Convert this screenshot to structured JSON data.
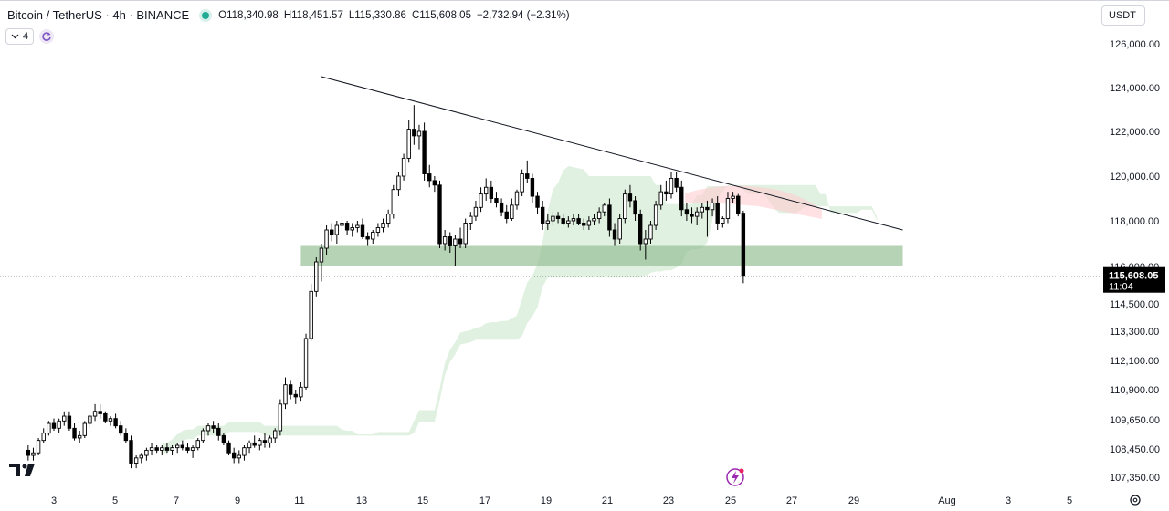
{
  "header": {
    "symbol": "Bitcoin / TetherUS · 4h · BINANCE",
    "open": "O118,340.98",
    "high": "H118,451.57",
    "low": "L115,330.86",
    "close": "C115,608.05",
    "change": "−2,732.94 (−2.31%)",
    "currency": "USDT",
    "indicator_count": "4"
  },
  "colors": {
    "status": "#22ab94",
    "candle_up": "#ffffff",
    "candle_down": "#000000",
    "support_zone": "#8fbc8f",
    "cloud_bull": "#c8e6c9",
    "cloud_bear": "#ffcdd2",
    "price_tag": "#000000"
  },
  "price_tag": {
    "price": "115,608.05",
    "countdown": "11:04"
  },
  "chart_data": {
    "type": "candlestick",
    "y_tick_labels": [
      "126,000.00",
      "124,000.00",
      "122,000.00",
      "120,000.00",
      "118,000.00",
      "116,000.00",
      "114,500.00",
      "113,300.00",
      "112,100.00",
      "110,900.00",
      "109,650.00",
      "108,450.00",
      "107,350.00"
    ],
    "x_tick_labels": [
      "3",
      "5",
      "7",
      "9",
      "11",
      "13",
      "15",
      "17",
      "19",
      "21",
      "23",
      "25",
      "27",
      "29",
      "Aug",
      "3",
      "5"
    ],
    "trendline": {
      "from": [
        "2025-07-11 16:00",
        124500
      ],
      "to": [
        "2025-07-30 12:00",
        117600
      ]
    },
    "support_zone": {
      "from": "2025-07-11 00:00",
      "to": "2025-07-30 12:00",
      "low": 116000,
      "high": 116900
    },
    "last_price": 115608.05,
    "candles": [
      [
        "2025-07-02 04:00",
        108400,
        108600,
        108000,
        108200
      ],
      [
        "2025-07-02 08:00",
        108200,
        108500,
        108000,
        108300
      ],
      [
        "2025-07-02 12:00",
        108300,
        108900,
        108200,
        108800
      ],
      [
        "2025-07-02 16:00",
        108800,
        109300,
        108700,
        109100
      ],
      [
        "2025-07-02 20:00",
        109100,
        109600,
        109000,
        109500
      ],
      [
        "2025-07-03 00:00",
        109500,
        109700,
        109200,
        109300
      ],
      [
        "2025-07-03 04:00",
        109300,
        109700,
        109100,
        109600
      ],
      [
        "2025-07-03 08:00",
        109600,
        110000,
        109400,
        109800
      ],
      [
        "2025-07-03 12:00",
        109800,
        110000,
        109200,
        109300
      ],
      [
        "2025-07-03 16:00",
        109300,
        109500,
        108800,
        108900
      ],
      [
        "2025-07-03 20:00",
        108900,
        109200,
        108700,
        109000
      ],
      [
        "2025-07-04 00:00",
        109000,
        109600,
        108900,
        109500
      ],
      [
        "2025-07-04 04:00",
        109500,
        109900,
        109300,
        109800
      ],
      [
        "2025-07-04 08:00",
        109800,
        110300,
        109600,
        110000
      ],
      [
        "2025-07-04 12:00",
        110000,
        110300,
        109700,
        109900
      ],
      [
        "2025-07-04 16:00",
        109900,
        110000,
        109500,
        109600
      ],
      [
        "2025-07-04 20:00",
        109600,
        109800,
        109400,
        109700
      ],
      [
        "2025-07-05 00:00",
        109700,
        109900,
        109300,
        109400
      ],
      [
        "2025-07-05 04:00",
        109400,
        109600,
        109000,
        109100
      ],
      [
        "2025-07-05 08:00",
        109100,
        109300,
        108700,
        108800
      ],
      [
        "2025-07-05 12:00",
        108800,
        109000,
        107700,
        107900
      ],
      [
        "2025-07-05 16:00",
        107900,
        108200,
        107700,
        108100
      ],
      [
        "2025-07-05 20:00",
        108100,
        108300,
        107900,
        108200
      ],
      [
        "2025-07-06 00:00",
        108200,
        108500,
        108000,
        108400
      ],
      [
        "2025-07-06 04:00",
        108400,
        108700,
        108200,
        108500
      ],
      [
        "2025-07-06 08:00",
        108500,
        108600,
        108300,
        108400
      ],
      [
        "2025-07-06 12:00",
        108400,
        108600,
        108200,
        108500
      ],
      [
        "2025-07-06 16:00",
        108500,
        108700,
        108300,
        108400
      ],
      [
        "2025-07-06 20:00",
        108400,
        108600,
        108200,
        108500
      ],
      [
        "2025-07-07 00:00",
        108500,
        108700,
        108300,
        108600
      ],
      [
        "2025-07-07 04:00",
        108600,
        108800,
        108400,
        108500
      ],
      [
        "2025-07-07 08:00",
        108500,
        108700,
        108300,
        108400
      ],
      [
        "2025-07-07 12:00",
        108400,
        108600,
        108100,
        108500
      ],
      [
        "2025-07-07 16:00",
        108500,
        108900,
        108400,
        108800
      ],
      [
        "2025-07-07 20:00",
        108800,
        109300,
        108700,
        109200
      ],
      [
        "2025-07-08 00:00",
        109200,
        109500,
        109000,
        109400
      ],
      [
        "2025-07-08 04:00",
        109400,
        109600,
        109100,
        109300
      ],
      [
        "2025-07-08 08:00",
        109300,
        109500,
        108800,
        109000
      ],
      [
        "2025-07-08 12:00",
        109000,
        109100,
        108600,
        108700
      ],
      [
        "2025-07-08 16:00",
        108700,
        108800,
        108200,
        108300
      ],
      [
        "2025-07-08 20:00",
        108300,
        108500,
        107900,
        108100
      ],
      [
        "2025-07-09 00:00",
        108100,
        108400,
        107900,
        108200
      ],
      [
        "2025-07-09 04:00",
        108200,
        108600,
        108000,
        108500
      ],
      [
        "2025-07-09 08:00",
        108500,
        108800,
        108300,
        108700
      ],
      [
        "2025-07-09 12:00",
        108700,
        109000,
        108500,
        108600
      ],
      [
        "2025-07-09 16:00",
        108600,
        108900,
        108400,
        108800
      ],
      [
        "2025-07-09 20:00",
        108800,
        109100,
        108500,
        108700
      ],
      [
        "2025-07-10 00:00",
        108700,
        109000,
        108500,
        108900
      ],
      [
        "2025-07-10 04:00",
        108900,
        109300,
        108700,
        109200
      ],
      [
        "2025-07-10 08:00",
        109200,
        110500,
        109000,
        110300
      ],
      [
        "2025-07-10 12:00",
        110300,
        111400,
        110100,
        111100
      ],
      [
        "2025-07-10 16:00",
        111100,
        111300,
        110500,
        110700
      ],
      [
        "2025-07-10 20:00",
        110700,
        110900,
        110300,
        110600
      ],
      [
        "2025-07-11 00:00",
        110600,
        111200,
        110400,
        111000
      ],
      [
        "2025-07-11 04:00",
        111000,
        113200,
        110900,
        113000
      ],
      [
        "2025-07-11 08:00",
        113000,
        115300,
        112900,
        115000
      ],
      [
        "2025-07-11 12:00",
        115000,
        116400,
        114800,
        116200
      ],
      [
        "2025-07-11 16:00",
        116200,
        117000,
        115400,
        116800
      ],
      [
        "2025-07-11 20:00",
        116800,
        117800,
        116500,
        117600
      ],
      [
        "2025-07-12 00:00",
        117600,
        117900,
        117100,
        117400
      ],
      [
        "2025-07-12 04:00",
        117400,
        118000,
        117000,
        117800
      ],
      [
        "2025-07-12 08:00",
        117800,
        118200,
        117600,
        117900
      ],
      [
        "2025-07-12 12:00",
        117900,
        118000,
        117400,
        117600
      ],
      [
        "2025-07-12 16:00",
        117600,
        117900,
        117300,
        117700
      ],
      [
        "2025-07-12 20:00",
        117700,
        118000,
        117500,
        117800
      ],
      [
        "2025-07-13 00:00",
        117800,
        118100,
        117200,
        117300
      ],
      [
        "2025-07-13 04:00",
        117300,
        117500,
        116900,
        117200
      ],
      [
        "2025-07-13 08:00",
        117200,
        117600,
        117000,
        117500
      ],
      [
        "2025-07-13 12:00",
        117500,
        117900,
        117300,
        117700
      ],
      [
        "2025-07-13 16:00",
        117700,
        118100,
        117500,
        117900
      ],
      [
        "2025-07-13 20:00",
        117900,
        118500,
        117700,
        118300
      ],
      [
        "2025-07-14 00:00",
        118300,
        119600,
        118100,
        119400
      ],
      [
        "2025-07-14 04:00",
        119400,
        120200,
        119100,
        120000
      ],
      [
        "2025-07-14 08:00",
        120000,
        121000,
        119800,
        120800
      ],
      [
        "2025-07-14 12:00",
        120800,
        122500,
        120600,
        122100
      ],
      [
        "2025-07-14 16:00",
        122100,
        123200,
        121400,
        121800
      ],
      [
        "2025-07-14 20:00",
        121800,
        122300,
        121200,
        122000
      ],
      [
        "2025-07-15 00:00",
        122000,
        122400,
        119800,
        120100
      ],
      [
        "2025-07-15 04:00",
        120100,
        120500,
        119500,
        119800
      ],
      [
        "2025-07-15 08:00",
        119800,
        120000,
        119300,
        119600
      ],
      [
        "2025-07-15 12:00",
        119600,
        119800,
        116800,
        117000
      ],
      [
        "2025-07-15 16:00",
        117000,
        117600,
        116700,
        117300
      ],
      [
        "2025-07-15 20:00",
        117300,
        117500,
        116600,
        116900
      ],
      [
        "2025-07-16 00:00",
        116900,
        117400,
        116000,
        117200
      ],
      [
        "2025-07-16 04:00",
        117200,
        117700,
        116800,
        117000
      ],
      [
        "2025-07-16 08:00",
        117000,
        118100,
        116800,
        117900
      ],
      [
        "2025-07-16 12:00",
        117900,
        118400,
        117600,
        118200
      ],
      [
        "2025-07-16 16:00",
        118200,
        118900,
        118000,
        118600
      ],
      [
        "2025-07-16 20:00",
        118600,
        119500,
        118400,
        119200
      ],
      [
        "2025-07-17 00:00",
        119200,
        119900,
        118900,
        119500
      ],
      [
        "2025-07-17 04:00",
        119500,
        119800,
        118800,
        119000
      ],
      [
        "2025-07-17 08:00",
        119000,
        119300,
        118600,
        118800
      ],
      [
        "2025-07-17 12:00",
        118800,
        119000,
        118200,
        118400
      ],
      [
        "2025-07-17 16:00",
        118400,
        118700,
        117900,
        118100
      ],
      [
        "2025-07-17 20:00",
        118100,
        119000,
        118000,
        118700
      ],
      [
        "2025-07-18 00:00",
        118700,
        119400,
        118500,
        119300
      ],
      [
        "2025-07-18 04:00",
        119300,
        120300,
        119100,
        120100
      ],
      [
        "2025-07-18 08:00",
        120100,
        120700,
        119700,
        119900
      ],
      [
        "2025-07-18 12:00",
        119900,
        120100,
        118800,
        119100
      ],
      [
        "2025-07-18 16:00",
        119100,
        119300,
        118300,
        118600
      ],
      [
        "2025-07-18 20:00",
        118600,
        118900,
        117600,
        117900
      ],
      [
        "2025-07-19 00:00",
        117900,
        118300,
        117600,
        118000
      ],
      [
        "2025-07-19 04:00",
        118000,
        118400,
        117800,
        118200
      ],
      [
        "2025-07-19 08:00",
        118200,
        118400,
        117900,
        118100
      ],
      [
        "2025-07-19 12:00",
        118100,
        118300,
        117800,
        117900
      ],
      [
        "2025-07-19 16:00",
        117900,
        118200,
        117700,
        118000
      ],
      [
        "2025-07-19 20:00",
        118000,
        118300,
        117800,
        118100
      ],
      [
        "2025-07-20 00:00",
        118100,
        118300,
        117800,
        117900
      ],
      [
        "2025-07-20 04:00",
        117900,
        118100,
        117600,
        117800
      ],
      [
        "2025-07-20 08:00",
        117800,
        118200,
        117600,
        118000
      ],
      [
        "2025-07-20 12:00",
        118000,
        118300,
        117800,
        118100
      ],
      [
        "2025-07-20 16:00",
        118100,
        118600,
        117900,
        118400
      ],
      [
        "2025-07-20 20:00",
        118400,
        118800,
        118200,
        118700
      ],
      [
        "2025-07-21 00:00",
        118700,
        119000,
        117300,
        117600
      ],
      [
        "2025-07-21 04:00",
        117600,
        117900,
        116900,
        117200
      ],
      [
        "2025-07-21 08:00",
        117200,
        118300,
        117000,
        118100
      ],
      [
        "2025-07-21 12:00",
        118100,
        119400,
        117900,
        119200
      ],
      [
        "2025-07-21 16:00",
        119200,
        119600,
        118600,
        118900
      ],
      [
        "2025-07-21 20:00",
        118900,
        119100,
        118000,
        118300
      ],
      [
        "2025-07-22 00:00",
        118300,
        118500,
        116700,
        117000
      ],
      [
        "2025-07-22 04:00",
        117000,
        117600,
        116300,
        117200
      ],
      [
        "2025-07-22 08:00",
        117200,
        118000,
        117000,
        117800
      ],
      [
        "2025-07-22 12:00",
        117800,
        118900,
        117600,
        118700
      ],
      [
        "2025-07-22 16:00",
        118700,
        119600,
        118500,
        119300
      ],
      [
        "2025-07-22 20:00",
        119300,
        119800,
        118900,
        119200
      ],
      [
        "2025-07-23 00:00",
        119200,
        120200,
        119000,
        119900
      ],
      [
        "2025-07-23 04:00",
        119900,
        120200,
        119300,
        119500
      ],
      [
        "2025-07-23 08:00",
        119500,
        119800,
        118200,
        118500
      ],
      [
        "2025-07-23 12:00",
        118500,
        118800,
        118000,
        118300
      ],
      [
        "2025-07-23 16:00",
        118300,
        118600,
        117900,
        118200
      ],
      [
        "2025-07-23 20:00",
        118200,
        118600,
        117800,
        118400
      ],
      [
        "2025-07-24 00:00",
        118400,
        118800,
        118100,
        118600
      ],
      [
        "2025-07-24 04:00",
        118600,
        118900,
        117300,
        118500
      ],
      [
        "2025-07-24 08:00",
        118500,
        119000,
        118200,
        118800
      ],
      [
        "2025-07-24 12:00",
        118800,
        119100,
        117600,
        117900
      ],
      [
        "2025-07-24 16:00",
        117900,
        118200,
        117700,
        118100
      ],
      [
        "2025-07-24 20:00",
        118100,
        119300,
        117900,
        119000
      ],
      [
        "2025-07-25 00:00",
        119000,
        119300,
        118800,
        119100
      ],
      [
        "2025-07-25 04:00",
        119100,
        119200,
        118200,
        118341
      ],
      [
        "2025-07-25 08:00",
        118341,
        118452,
        115331,
        115608
      ]
    ]
  }
}
